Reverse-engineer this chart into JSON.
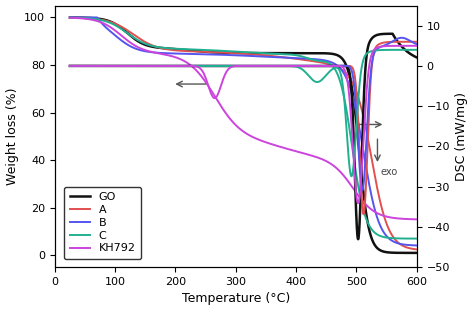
{
  "xlim": [
    0,
    600
  ],
  "ylim_left": [
    -5,
    105
  ],
  "ylim_right": [
    -50,
    15
  ],
  "xlabel": "Temperature (°C)",
  "ylabel_left": "Weight loss (%)",
  "ylabel_right": "DSC (mW/mg)",
  "legend_labels": [
    "GO",
    "A",
    "B",
    "C",
    "KH792"
  ],
  "legend_colors": [
    "#111111",
    "#e05050",
    "#5555ee",
    "#20b090",
    "#cc44dd"
  ],
  "lws": [
    1.8,
    1.4,
    1.4,
    1.4,
    1.4
  ],
  "axis_fontsize": 9,
  "tick_fontsize": 8,
  "legend_fontsize": 8
}
